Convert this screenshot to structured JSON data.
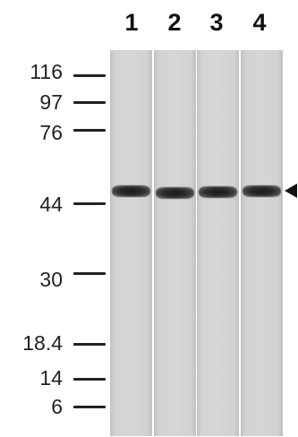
{
  "lanes": [
    "1",
    "2",
    "3",
    "4"
  ],
  "markers": [
    "116",
    "97",
    "76",
    "44",
    "30",
    "18.4",
    "14",
    "6"
  ],
  "colors": {
    "band": "#1f1f1f",
    "membrane": "#d4d4d4",
    "text": "#222222"
  },
  "icons": {
    "band_indicator": "left-triangle-arrow"
  }
}
